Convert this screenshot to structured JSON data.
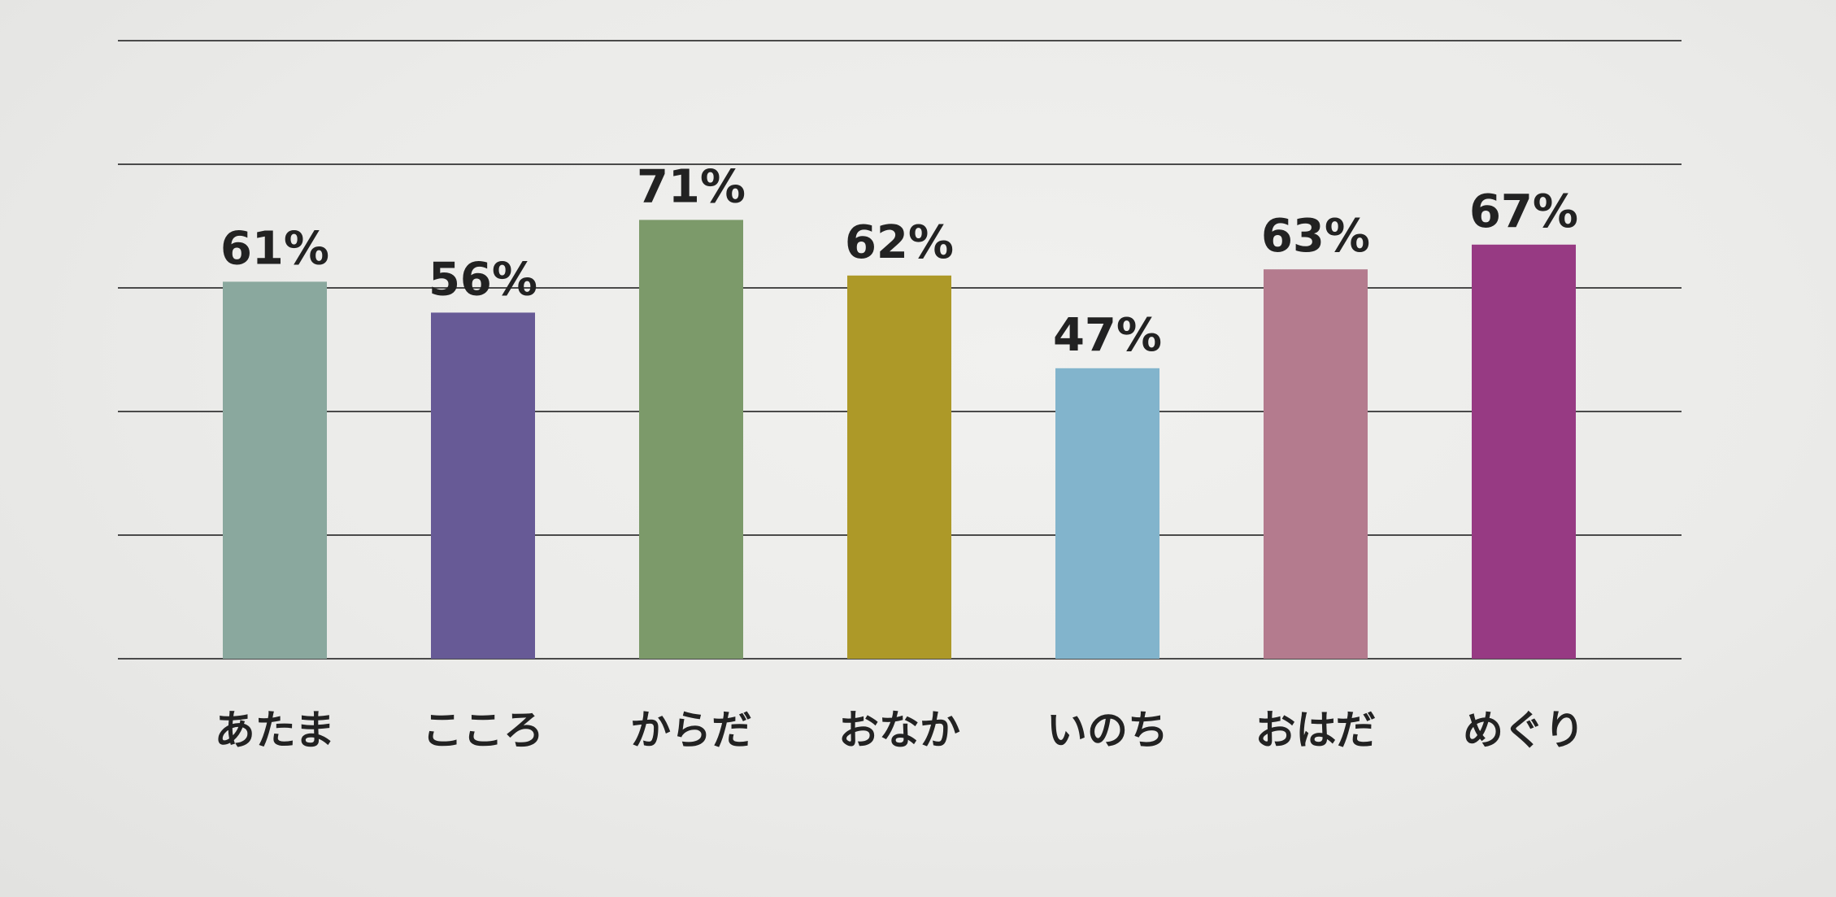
{
  "chart_data": {
    "type": "bar",
    "categories": [
      "あたま",
      "こころ",
      "からだ",
      "おなか",
      "いのち",
      "おはだ",
      "めぐり"
    ],
    "values": [
      61,
      56,
      71,
      62,
      47,
      63,
      67
    ],
    "value_labels": [
      "61%",
      "56%",
      "71%",
      "62%",
      "47%",
      "63%",
      "67%"
    ],
    "bar_colors": [
      "#8aa89e",
      "#675a96",
      "#7c9a6a",
      "#ad9928",
      "#82b4cc",
      "#b47b8e",
      "#973a83"
    ],
    "ylim": [
      0,
      100
    ],
    "gridlines": [
      0,
      20,
      40,
      60,
      80,
      100
    ],
    "grid": true,
    "title": "",
    "xlabel": "",
    "ylabel": ""
  }
}
